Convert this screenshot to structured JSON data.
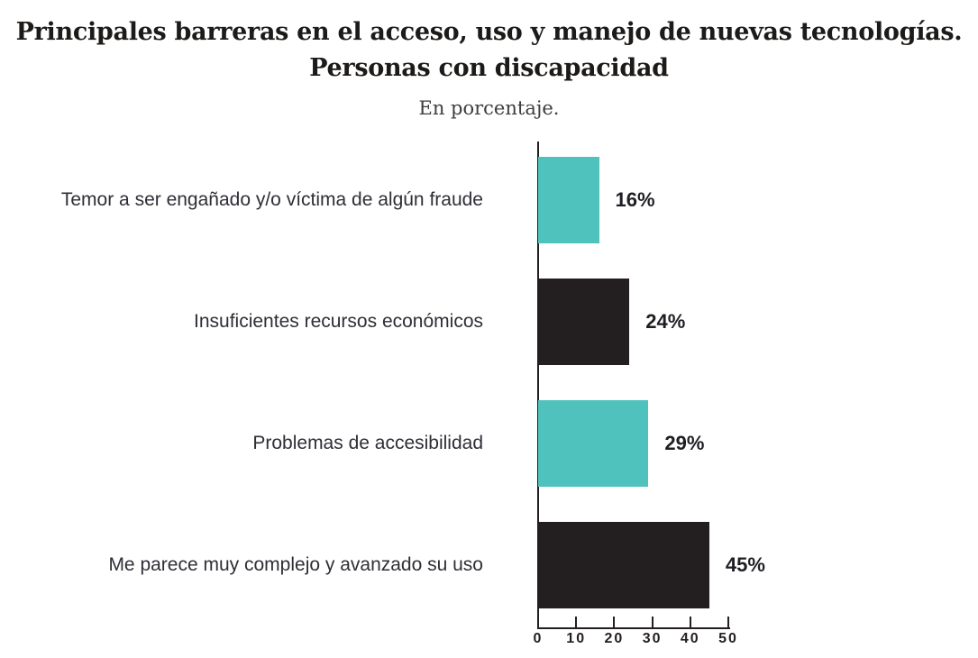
{
  "header": {
    "title_line1": "Principales barreras en el acceso, uso y manejo de nuevas tecnologías.",
    "title_line2": "Personas con discapacidad",
    "subtitle": "En porcentaje."
  },
  "colors": {
    "teal": "#4FC2BE",
    "black": "#231F20",
    "axis": "#231F20",
    "category_text": "#2e2e36",
    "value_text": "#1e1e24"
  },
  "chart_data": {
    "type": "bar",
    "orientation": "horizontal",
    "title": "Principales barreras en el acceso, uso y manejo de nuevas tecnologías. Personas con discapacidad",
    "subtitle": "En porcentaje.",
    "unit": "percent",
    "categories": [
      "Temor a ser engañado y/o víctima de algún fraude",
      "Insuficientes recursos económicos",
      "Problemas de accesibilidad",
      "Me parece muy complejo y avanzado su uso"
    ],
    "values": [
      16,
      24,
      29,
      45
    ],
    "value_labels": [
      "16%",
      "24%",
      "29%",
      "45%"
    ],
    "bar_colors": [
      "#4FC2BE",
      "#231F20",
      "#4FC2BE",
      "#231F20"
    ],
    "xlim": [
      0,
      50
    ],
    "xticks": [
      0,
      10,
      20,
      30,
      40,
      50
    ],
    "grid": false,
    "legend": false,
    "axis_position": "bottom"
  }
}
